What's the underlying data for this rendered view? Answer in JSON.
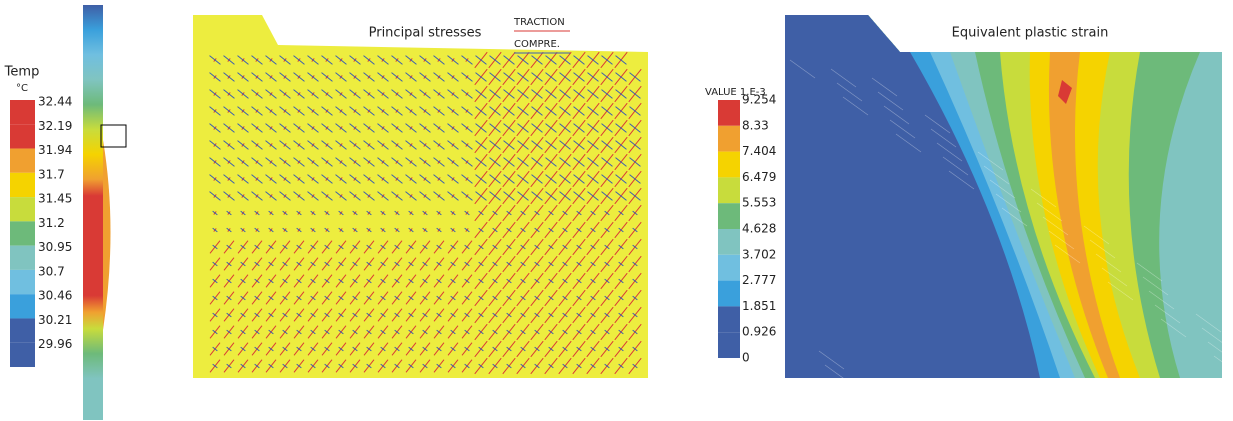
{
  "temperature_panel": {
    "title": "Temp",
    "unit": "°C",
    "legend": [
      "32.44",
      "32.19",
      "31.94",
      "31.7",
      "31.45",
      "31.2",
      "30.95",
      "30.7",
      "30.46",
      "30.21",
      "29.96"
    ]
  },
  "stress_panel": {
    "title": "Principal stresses",
    "legend": [
      "TRACTION",
      "COMPRE."
    ]
  },
  "strain_panel": {
    "title": "Equivalent plastic strain",
    "legend_title": "VALUE 1.E-3",
    "legend": [
      "9.254",
      "8.33",
      "7.404",
      "6.479",
      "5.553",
      "4.628",
      "3.702",
      "2.777",
      "1.851",
      "0.926",
      "0"
    ]
  }
}
